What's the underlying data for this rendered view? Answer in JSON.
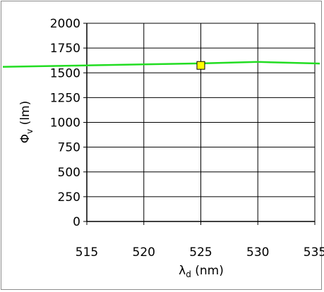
{
  "chart_data": {
    "type": "line",
    "xlabel": {
      "symbol": "λ",
      "subscript": "d",
      "unit": " (nm)"
    },
    "ylabel": {
      "symbol": "Φ",
      "subscript": "v",
      "unit": " (lm)"
    },
    "xlim": [
      515,
      535
    ],
    "ylim": [
      0,
      2000
    ],
    "xticks": [
      515,
      520,
      525,
      530,
      535
    ],
    "yticks": [
      0,
      250,
      500,
      750,
      1000,
      1250,
      1500,
      1750,
      2000
    ],
    "grid": true,
    "series": [
      {
        "color": "#22dd22",
        "x": [
          515,
          520,
          525,
          530,
          535
        ],
        "y": [
          1575,
          1585,
          1595,
          1610,
          1595
        ]
      }
    ],
    "markers": [
      {
        "x": 525,
        "y": 1575,
        "shape": "square",
        "fill": "#ffff00",
        "stroke": "#000000"
      }
    ]
  }
}
